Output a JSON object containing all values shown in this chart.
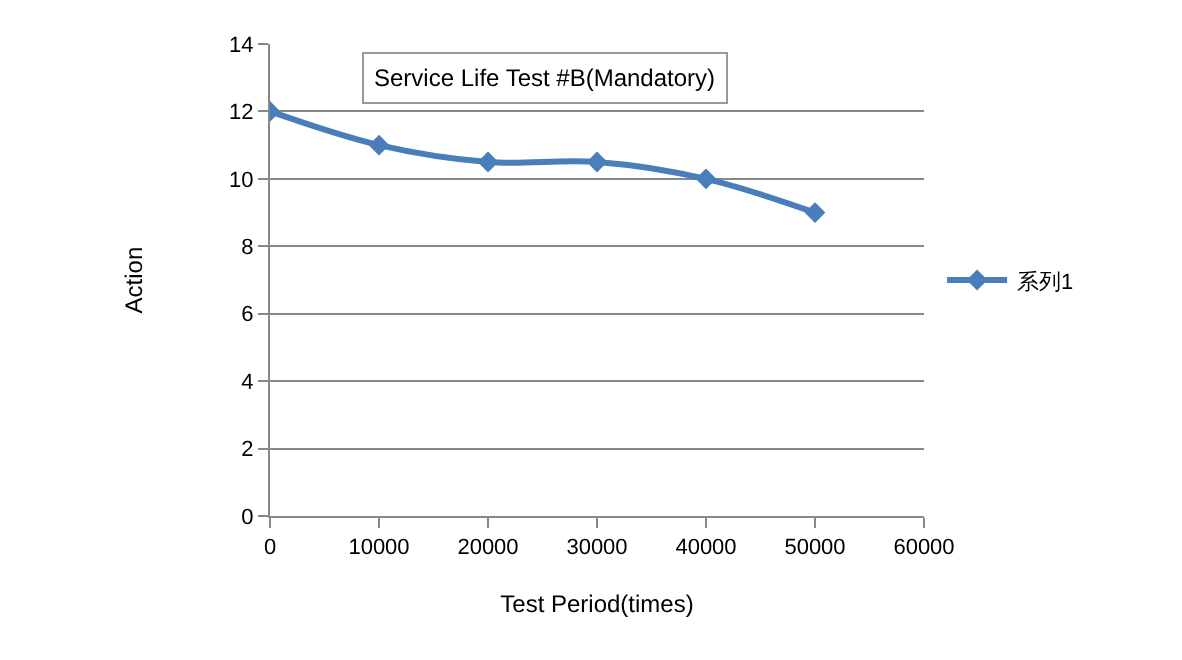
{
  "chart_data": {
    "type": "line",
    "title": "Service Life Test #B(Mandatory)",
    "xlabel": "Test Period(times)",
    "ylabel": "Action",
    "x": [
      0,
      10000,
      20000,
      30000,
      40000,
      50000
    ],
    "series": [
      {
        "name": "系列1",
        "color": "#4a7ebb",
        "values": [
          12,
          11,
          10.5,
          10.5,
          10,
          9
        ]
      }
    ],
    "xlim": [
      0,
      60000
    ],
    "xticks": [
      0,
      10000,
      20000,
      30000,
      40000,
      50000,
      60000
    ],
    "ylim": [
      0,
      14
    ],
    "yticks": [
      0,
      2,
      4,
      6,
      8,
      10,
      12,
      14
    ],
    "grid": "y",
    "legend": "right",
    "marker": "diamond",
    "line_style": "solid"
  }
}
